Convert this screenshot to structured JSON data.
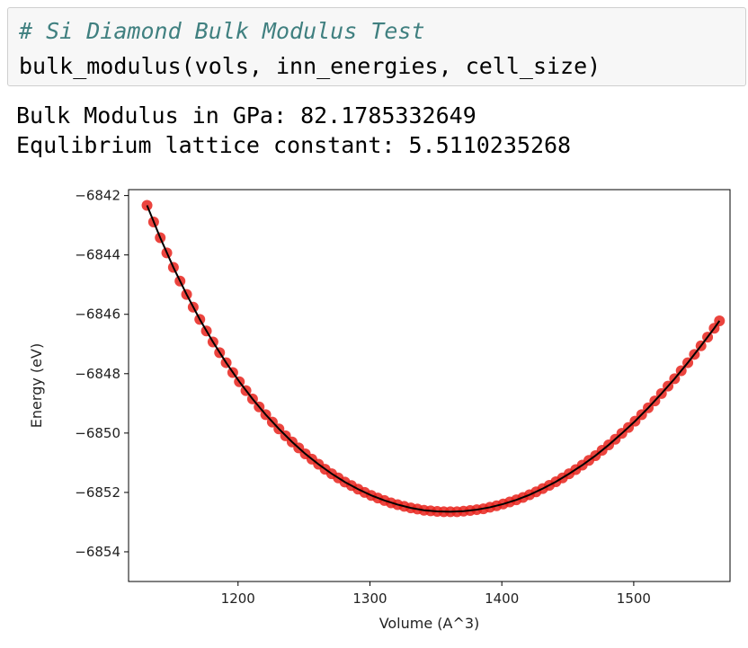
{
  "cell": {
    "comment": "# Si Diamond Bulk Modulus Test",
    "code": "bulk_modulus(vols, inn_energies, cell_size)"
  },
  "output": {
    "line1": "Bulk Modulus in GPa: 82.1785332649",
    "line2": "Equlibrium lattice constant: 5.5110235268"
  },
  "colors": {
    "points": "#e8231c",
    "fit": "#000000",
    "comment": "#408080"
  },
  "chart_data": {
    "type": "scatter",
    "xlabel": "Volume (A^3)",
    "ylabel": "Energy (eV)",
    "xlim": [
      1117,
      1573
    ],
    "ylim": [
      -6855.0,
      -6841.8
    ],
    "xticks": [
      1200,
      1300,
      1400,
      1500
    ],
    "yticks": [
      -6842,
      -6844,
      -6846,
      -6848,
      -6850,
      -6852,
      -6854
    ],
    "grid": false,
    "series": [
      {
        "kind": "points",
        "x": [
          1131,
          1136,
          1141,
          1146,
          1151,
          1156,
          1161,
          1166,
          1171,
          1176,
          1181,
          1186,
          1191,
          1196,
          1201,
          1206,
          1211,
          1216,
          1221,
          1226,
          1231,
          1236,
          1241,
          1246,
          1251,
          1256,
          1261,
          1266,
          1271,
          1276,
          1281,
          1286,
          1291,
          1296,
          1301,
          1306,
          1311,
          1316,
          1321,
          1326,
          1331,
          1336,
          1341,
          1346,
          1351,
          1356,
          1361,
          1366,
          1371,
          1376,
          1381,
          1386,
          1391,
          1396,
          1401,
          1406,
          1411,
          1416,
          1421,
          1426,
          1431,
          1436,
          1441,
          1446,
          1451,
          1456,
          1461,
          1466,
          1471,
          1476,
          1481,
          1486,
          1491,
          1496,
          1501,
          1506,
          1511,
          1516,
          1521,
          1526,
          1531,
          1536,
          1541,
          1546,
          1551,
          1556,
          1561,
          1565
        ],
        "y": [
          -6842.33,
          -6842.89,
          -6843.42,
          -6843.93,
          -6844.42,
          -6844.88,
          -6845.33,
          -6845.76,
          -6846.17,
          -6846.56,
          -6846.93,
          -6847.29,
          -6847.63,
          -6847.96,
          -6848.27,
          -6848.57,
          -6848.85,
          -6849.12,
          -6849.38,
          -6849.63,
          -6849.86,
          -6850.09,
          -6850.3,
          -6850.5,
          -6850.7,
          -6850.88,
          -6851.05,
          -6851.22,
          -6851.37,
          -6851.51,
          -6851.65,
          -6851.77,
          -6851.89,
          -6852.0,
          -6852.1,
          -6852.19,
          -6852.27,
          -6852.35,
          -6852.41,
          -6852.47,
          -6852.52,
          -6852.56,
          -6852.6,
          -6852.62,
          -6852.64,
          -6852.65,
          -6852.65,
          -6852.65,
          -6852.63,
          -6852.61,
          -6852.58,
          -6852.55,
          -6852.5,
          -6852.45,
          -6852.39,
          -6852.32,
          -6852.25,
          -6852.17,
          -6852.08,
          -6851.98,
          -6851.87,
          -6851.76,
          -6851.64,
          -6851.51,
          -6851.37,
          -6851.23,
          -6851.08,
          -6850.92,
          -6850.76,
          -6850.58,
          -6850.4,
          -6850.21,
          -6850.01,
          -6849.81,
          -6849.6,
          -6849.38,
          -6849.15,
          -6848.92,
          -6848.67,
          -6848.42,
          -6848.17,
          -6847.9,
          -6847.63,
          -6847.35,
          -6847.06,
          -6846.77,
          -6846.47,
          -6846.22
        ]
      },
      {
        "kind": "fit_line",
        "x": [
          1131,
          1141,
          1151,
          1161,
          1171,
          1181,
          1191,
          1201,
          1211,
          1221,
          1231,
          1241,
          1251,
          1261,
          1271,
          1281,
          1291,
          1301,
          1311,
          1321,
          1331,
          1341,
          1351,
          1361,
          1371,
          1381,
          1391,
          1401,
          1411,
          1421,
          1431,
          1441,
          1451,
          1461,
          1471,
          1481,
          1491,
          1501,
          1511,
          1521,
          1531,
          1541,
          1551,
          1561,
          1565
        ],
        "y": [
          -6842.33,
          -6843.42,
          -6844.42,
          -6845.33,
          -6846.17,
          -6846.93,
          -6847.63,
          -6848.27,
          -6848.85,
          -6849.38,
          -6849.86,
          -6850.3,
          -6850.7,
          -6851.05,
          -6851.37,
          -6851.65,
          -6851.89,
          -6852.1,
          -6852.27,
          -6852.41,
          -6852.52,
          -6852.6,
          -6852.64,
          -6852.65,
          -6852.63,
          -6852.58,
          -6852.5,
          -6852.39,
          -6852.25,
          -6852.08,
          -6851.87,
          -6851.64,
          -6851.37,
          -6851.08,
          -6850.76,
          -6850.4,
          -6850.01,
          -6849.6,
          -6849.15,
          -6848.67,
          -6848.17,
          -6847.63,
          -6847.06,
          -6846.47,
          -6846.22
        ]
      }
    ]
  }
}
